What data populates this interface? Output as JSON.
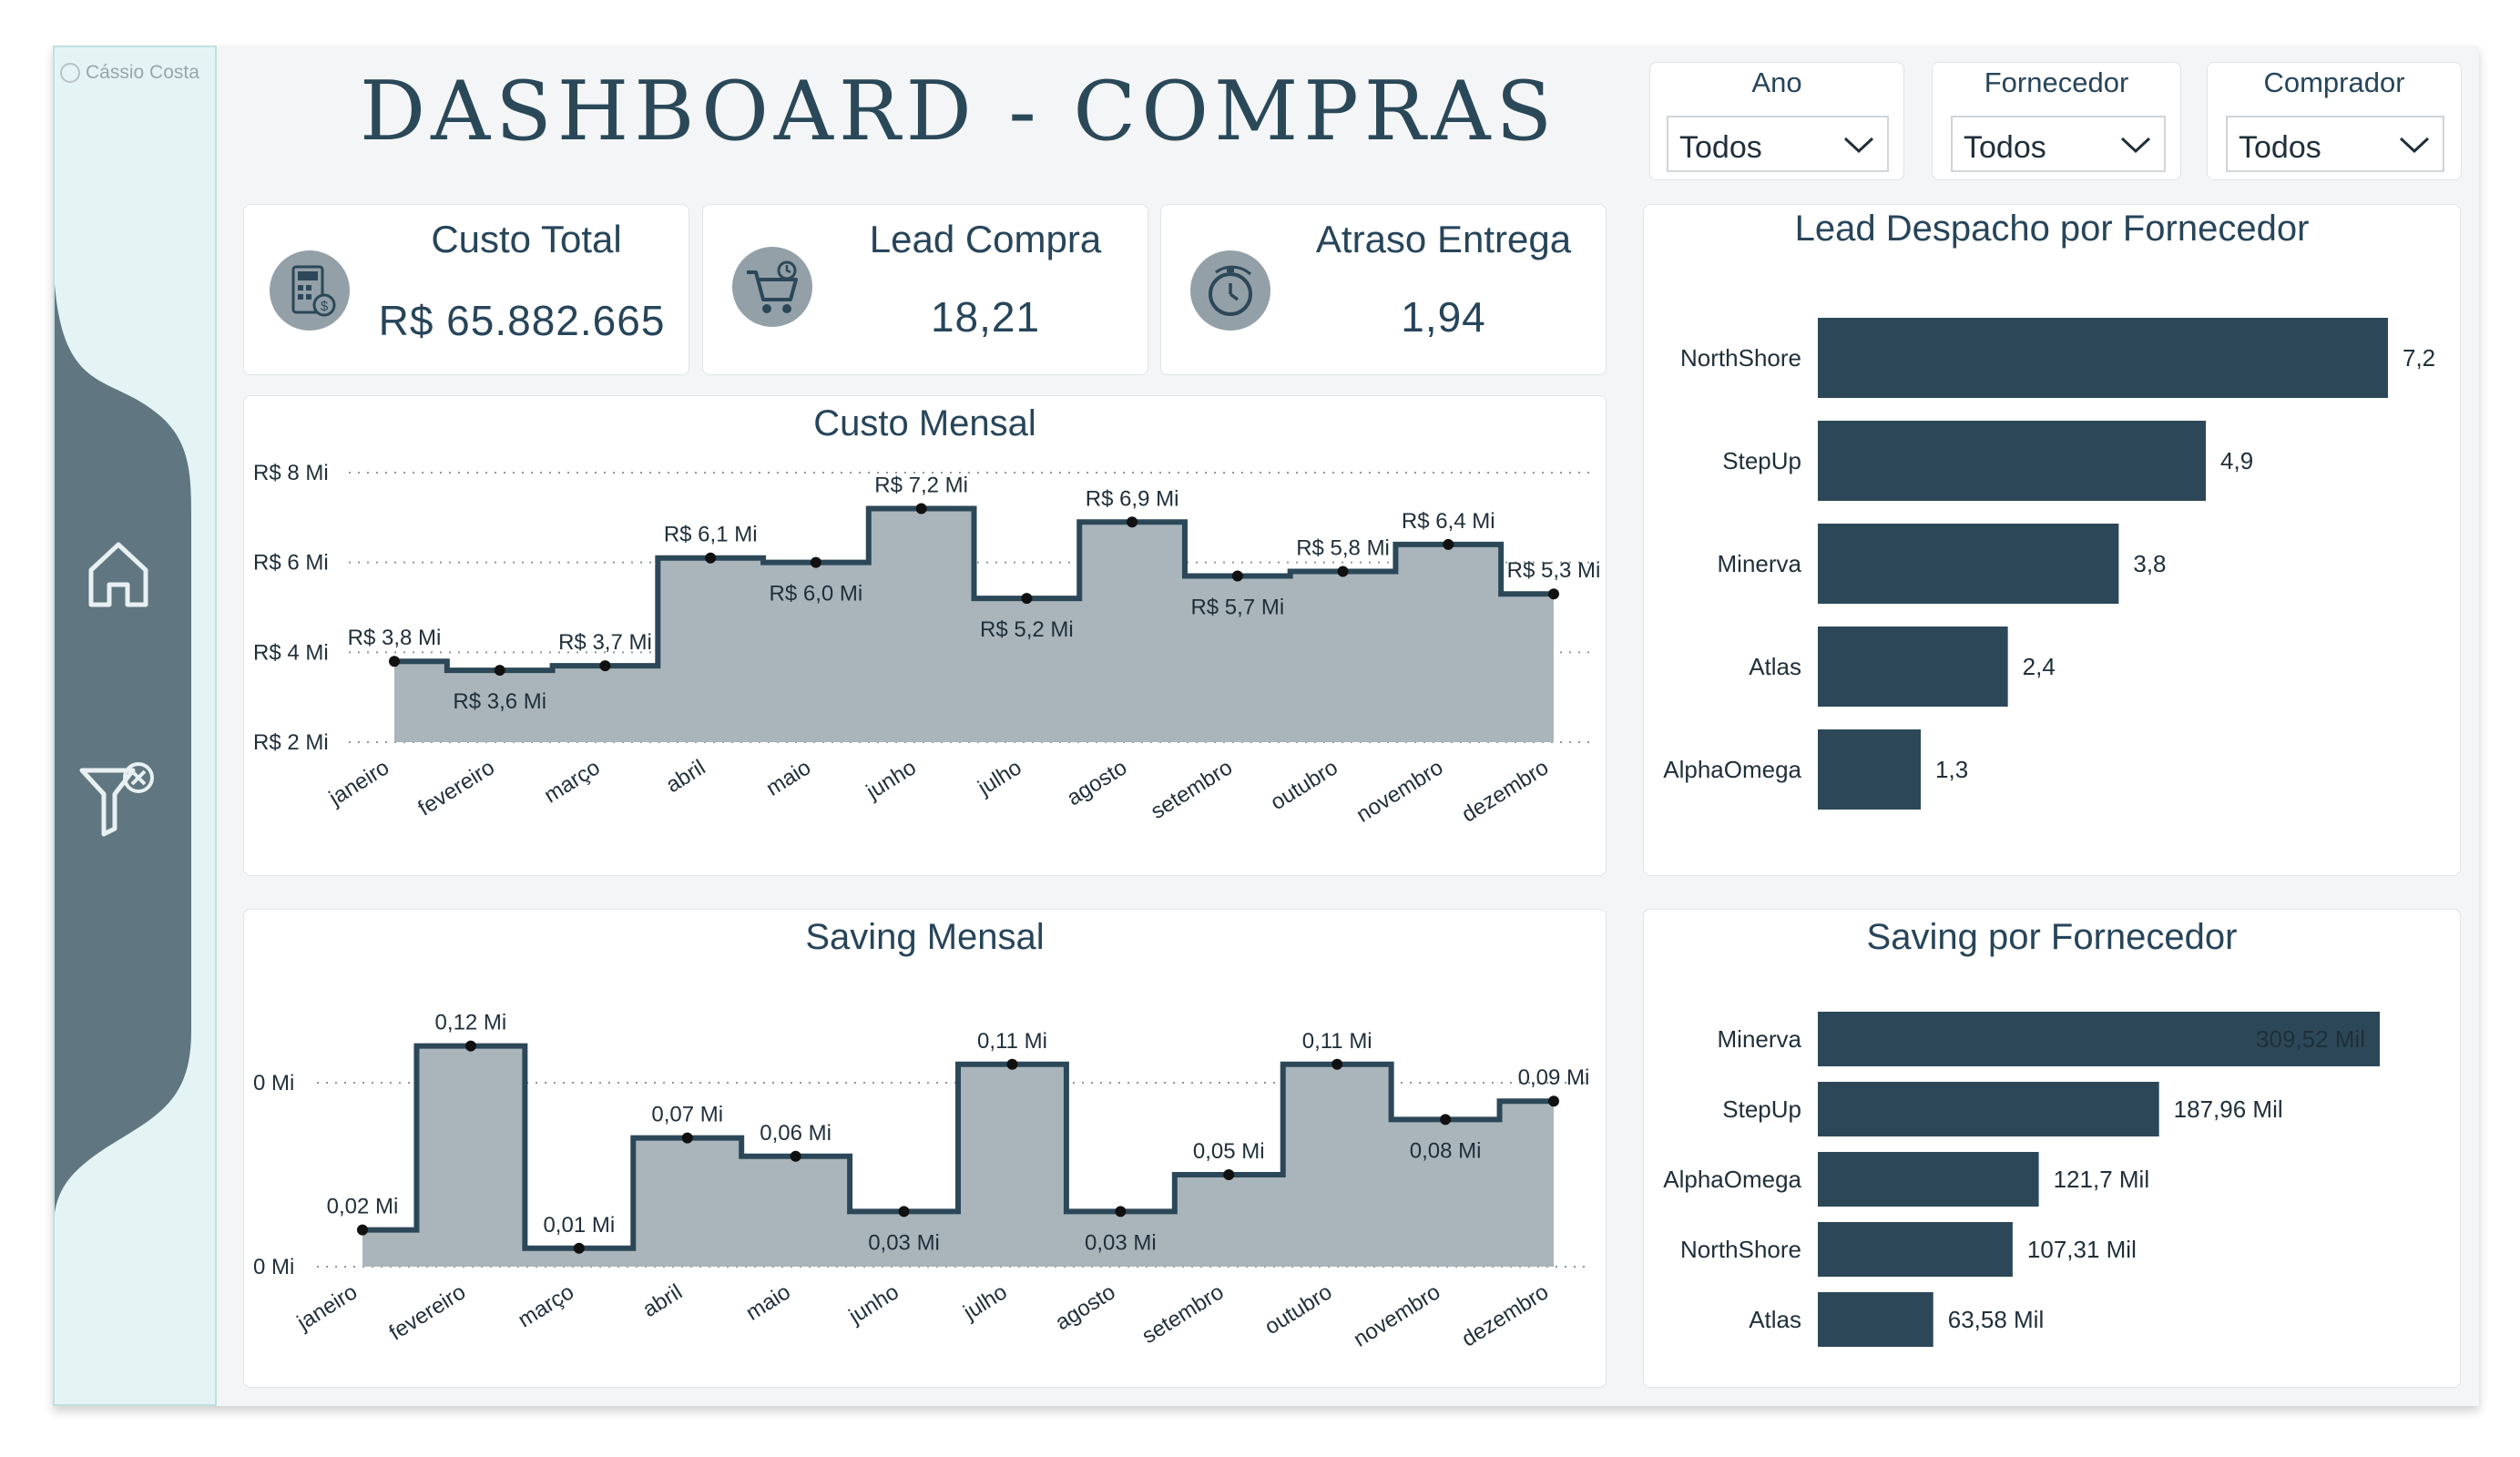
{
  "app": {
    "author": "Cássio Costa",
    "title": "DASHBOARD - COMPRAS"
  },
  "filters": [
    {
      "label": "Ano",
      "value": "Todos"
    },
    {
      "label": "Fornecedor",
      "value": "Todos"
    },
    {
      "label": "Comprador",
      "value": "Todos"
    }
  ],
  "kpis": [
    {
      "label": "Custo Total",
      "value": "R$ 65.882.665",
      "icon": "calculator-icon"
    },
    {
      "label": "Lead Compra",
      "value": "18,21",
      "icon": "shopping-cart-icon"
    },
    {
      "label": "Atraso Entrega",
      "value": "1,94",
      "icon": "stopwatch-icon"
    }
  ],
  "nav": {
    "home_icon": "home-icon",
    "filter_clear_icon": "filter-clear-icon"
  },
  "colors": {
    "accent": "#2c4858",
    "area": "#a9b5bb",
    "sidebar": "#e4f4f4",
    "sidebar_band": "#607680"
  },
  "chart_data": [
    {
      "id": "custo-mensal",
      "type": "area",
      "title": "Custo Mensal",
      "categories": [
        "janeiro",
        "fevereiro",
        "março",
        "abril",
        "maio",
        "junho",
        "julho",
        "agosto",
        "setembro",
        "outubro",
        "novembro",
        "dezembro"
      ],
      "values": [
        3.8,
        3.6,
        3.7,
        6.1,
        6.0,
        7.2,
        5.2,
        6.9,
        5.7,
        5.8,
        6.4,
        5.3
      ],
      "data_labels": [
        "R$ 3,8 Mi",
        "R$ 3,6 Mi",
        "R$ 3,7 Mi",
        "R$ 6,1 Mi",
        "R$ 6,0 Mi",
        "R$ 7,2 Mi",
        "R$ 5,2 Mi",
        "R$ 6,9 Mi",
        "R$ 5,7 Mi",
        "R$ 5,8 Mi",
        "R$ 6,4 Mi",
        "R$ 5,3 Mi"
      ],
      "yticks": [
        2,
        4,
        6,
        8
      ],
      "ytick_labels": [
        "R$ 2 Mi",
        "R$ 4 Mi",
        "R$ 6 Mi",
        "R$ 8 Mi"
      ],
      "ylim": [
        2,
        8
      ],
      "step": true,
      "grid": true
    },
    {
      "id": "saving-mensal",
      "type": "area",
      "title": "Saving Mensal",
      "categories": [
        "janeiro",
        "fevereiro",
        "março",
        "abril",
        "maio",
        "junho",
        "julho",
        "agosto",
        "setembro",
        "outubro",
        "novembro",
        "dezembro"
      ],
      "values": [
        0.02,
        0.12,
        0.01,
        0.07,
        0.06,
        0.03,
        0.11,
        0.03,
        0.05,
        0.11,
        0.08,
        0.09
      ],
      "data_labels": [
        "0,02 Mi",
        "0,12 Mi",
        "0,01 Mi",
        "0,07 Mi",
        "0,06 Mi",
        "0,03 Mi",
        "0,11 Mi",
        "0,03 Mi",
        "0,05 Mi",
        "0,11 Mi",
        "0,08 Mi",
        "0,09 Mi"
      ],
      "yticks": [
        0,
        0.1
      ],
      "ytick_labels": [
        "0 Mi",
        "0 Mi"
      ],
      "ylim": [
        0,
        0.1
      ],
      "step": true,
      "grid": true
    },
    {
      "id": "lead-despacho",
      "type": "bar",
      "orientation": "horizontal",
      "title": "Lead Despacho por Fornecedor",
      "categories": [
        "NorthShore",
        "StepUp",
        "Minerva",
        "Atlas",
        "AlphaOmega"
      ],
      "values": [
        7.2,
        4.9,
        3.8,
        2.4,
        1.3
      ],
      "data_labels": [
        "7,2",
        "4,9",
        "3,8",
        "2,4",
        "1,3"
      ],
      "xlim": [
        0,
        7.2
      ]
    },
    {
      "id": "saving-fornecedor",
      "type": "bar",
      "orientation": "horizontal",
      "title": "Saving por Fornecedor",
      "categories": [
        "Minerva",
        "StepUp",
        "AlphaOmega",
        "NorthShore",
        "Atlas"
      ],
      "values": [
        309.52,
        187.96,
        121.7,
        107.31,
        63.58
      ],
      "data_labels": [
        "309,52 Mil",
        "187,96 Mil",
        "121,7 Mil",
        "107,31 Mil",
        "63,58 Mil"
      ],
      "xlim": [
        0,
        309.52
      ]
    }
  ]
}
